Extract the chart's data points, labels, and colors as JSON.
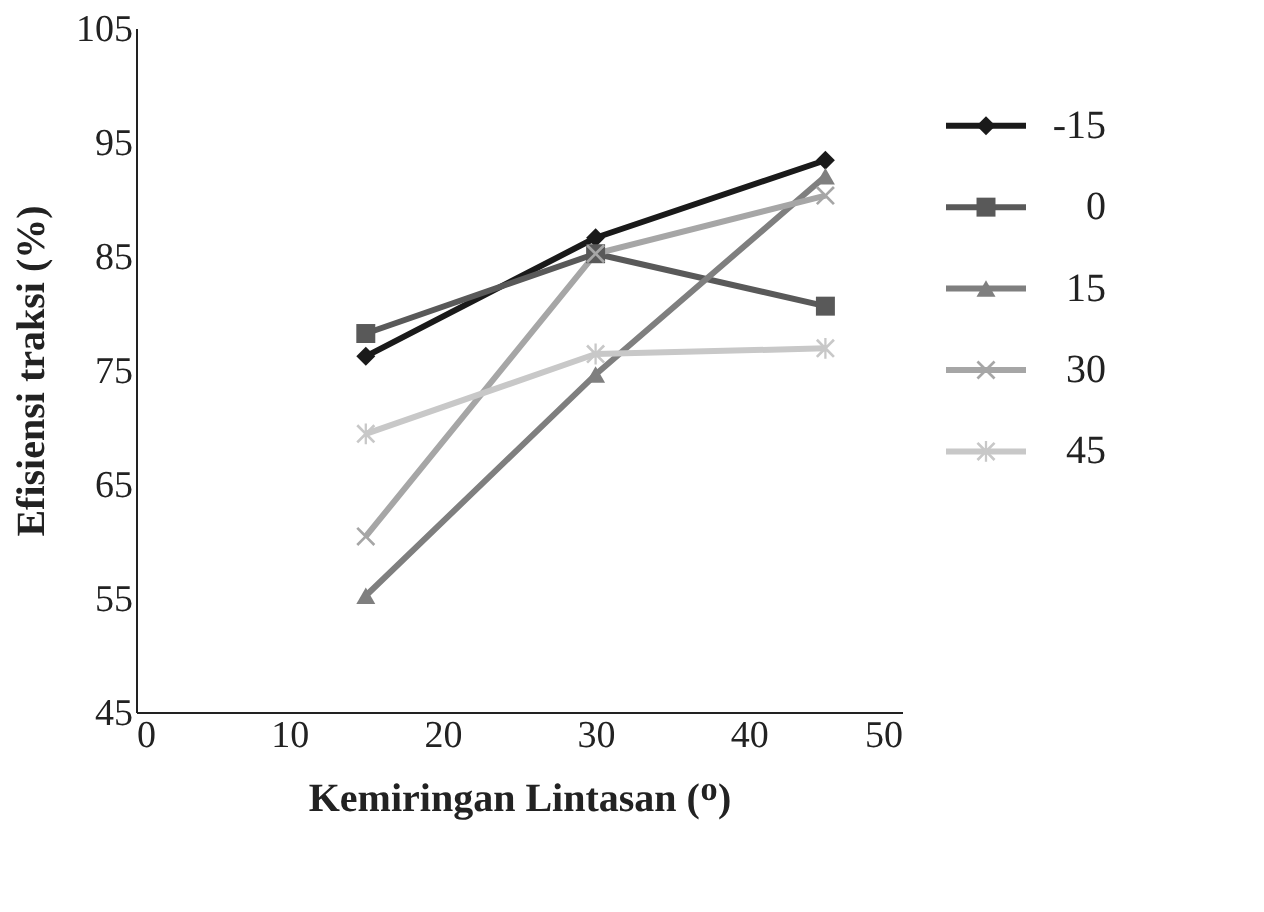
{
  "chart_data": {
    "type": "line",
    "xlabel": "Kemiringan Lintasan (ᴼ)",
    "ylabel": "Efisiensi traksi (%)",
    "xlim": [
      0,
      50
    ],
    "xticks": [
      0,
      10,
      20,
      30,
      40,
      50
    ],
    "ylim": [
      45,
      105
    ],
    "yticks": [
      45,
      55,
      65,
      75,
      85,
      95,
      105
    ],
    "grid": false,
    "legend": "right",
    "line_style": "solid",
    "series": [
      {
        "name": "-15",
        "color": "#1a1a1a",
        "marker": "diamond",
        "x": [
          15,
          30,
          45
        ],
        "values": [
          76.2,
          86.6,
          93.4
        ]
      },
      {
        "name": "0",
        "color": "#595959",
        "marker": "square",
        "x": [
          15,
          30,
          45
        ],
        "values": [
          78.2,
          85.2,
          80.6
        ]
      },
      {
        "name": "15",
        "color": "#7f7f7f",
        "marker": "triangle",
        "x": [
          15,
          30,
          45
        ],
        "values": [
          55.2,
          74.6,
          92.0
        ]
      },
      {
        "name": "30",
        "color": "#a6a6a6",
        "marker": "cross",
        "x": [
          15,
          30,
          45
        ],
        "values": [
          60.4,
          85.2,
          90.3
        ]
      },
      {
        "name": "45",
        "color": "#c8c8c8",
        "marker": "star",
        "x": [
          15,
          30,
          45
        ],
        "values": [
          69.4,
          76.4,
          76.9
        ]
      }
    ]
  }
}
